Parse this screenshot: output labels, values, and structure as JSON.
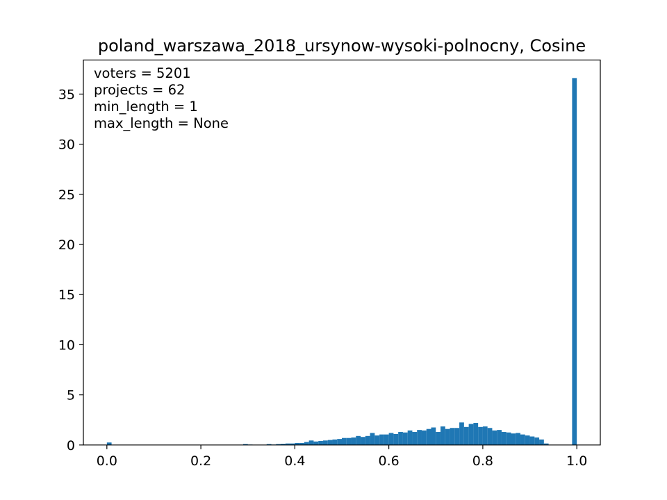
{
  "chart_data": {
    "type": "bar",
    "title": "poland_warszawa_2018_ursynow-wysoki-polnocny, Cosine",
    "xlabel": "",
    "ylabel": "",
    "xlim": [
      -0.05,
      1.05
    ],
    "ylim": [
      0,
      38.4
    ],
    "x_ticks": [
      "0.0",
      "0.2",
      "0.4",
      "0.6",
      "0.8",
      "1.0"
    ],
    "x_tick_values": [
      0.0,
      0.2,
      0.4,
      0.6,
      0.8,
      1.0
    ],
    "y_ticks": [
      "0",
      "5",
      "10",
      "15",
      "20",
      "25",
      "30",
      "35"
    ],
    "y_tick_values": [
      0,
      5,
      10,
      15,
      20,
      25,
      30,
      35
    ],
    "bin_width": 0.01,
    "bin_starts": [
      0.0,
      0.29,
      0.3,
      0.34,
      0.35,
      0.36,
      0.37,
      0.38,
      0.39,
      0.4,
      0.41,
      0.42,
      0.43,
      0.44,
      0.45,
      0.46,
      0.47,
      0.48,
      0.49,
      0.5,
      0.51,
      0.52,
      0.53,
      0.54,
      0.55,
      0.56,
      0.57,
      0.58,
      0.59,
      0.6,
      0.61,
      0.62,
      0.63,
      0.64,
      0.65,
      0.66,
      0.67,
      0.68,
      0.69,
      0.7,
      0.71,
      0.72,
      0.73,
      0.74,
      0.75,
      0.76,
      0.77,
      0.78,
      0.79,
      0.8,
      0.81,
      0.82,
      0.83,
      0.84,
      0.85,
      0.86,
      0.87,
      0.88,
      0.89,
      0.9,
      0.91,
      0.92,
      0.93,
      0.99
    ],
    "values": [
      0.25,
      0.1,
      0.05,
      0.1,
      0.05,
      0.1,
      0.12,
      0.15,
      0.15,
      0.2,
      0.2,
      0.3,
      0.45,
      0.35,
      0.4,
      0.45,
      0.5,
      0.55,
      0.6,
      0.7,
      0.7,
      0.75,
      0.9,
      0.8,
      0.9,
      1.2,
      0.95,
      1.05,
      1.05,
      1.2,
      1.1,
      1.3,
      1.25,
      1.45,
      1.3,
      1.5,
      1.45,
      1.6,
      1.75,
      1.3,
      1.85,
      1.6,
      1.7,
      1.7,
      2.25,
      1.8,
      2.1,
      2.2,
      1.8,
      1.85,
      1.7,
      1.45,
      1.5,
      1.3,
      1.25,
      1.15,
      1.2,
      1.05,
      0.95,
      0.85,
      0.75,
      0.55,
      0.15,
      36.6
    ],
    "color": "#1f77b4",
    "annotations": [
      "voters = 5201",
      "projects = 62",
      "min_length = 1",
      "max_length = None"
    ],
    "annotation_placement": "top-left",
    "grid": false
  }
}
